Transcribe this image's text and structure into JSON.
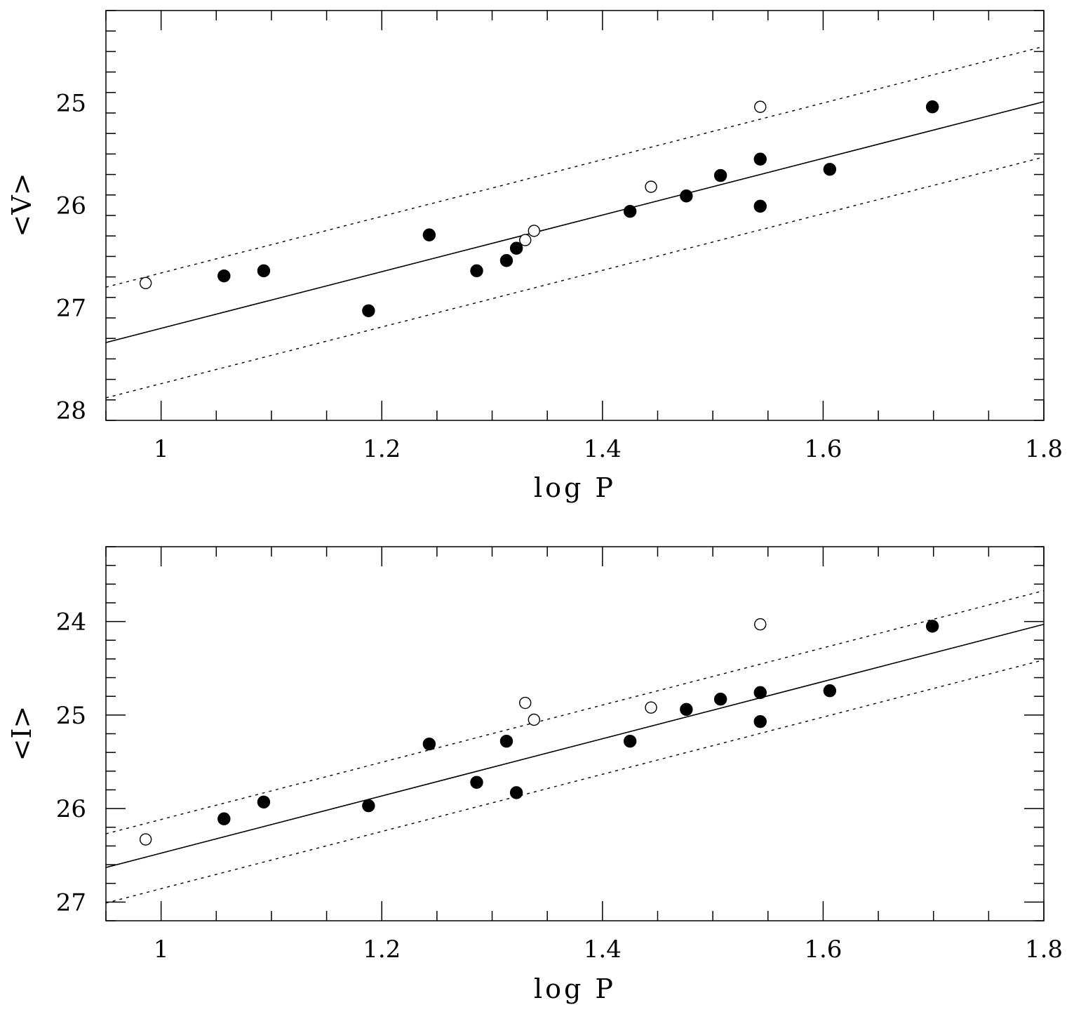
{
  "colors": {
    "ink": "#000000",
    "background": "#ffffff"
  },
  "chart_data": [
    {
      "type": "scatter",
      "xlabel": "log P",
      "ylabel": "<V>",
      "xlim": [
        0.95,
        1.8
      ],
      "ylim": [
        28.1,
        24.1
      ],
      "y_inverted": true,
      "x_ticks": [
        1.0,
        1.2,
        1.4,
        1.6,
        1.8
      ],
      "x_tick_labels": [
        "1",
        "1.2",
        "1.4",
        "1.6",
        "1.8"
      ],
      "x_minor_step": 0.05,
      "y_ticks": [
        25,
        26,
        27,
        28
      ],
      "y_tick_labels": [
        "25",
        "26",
        "27",
        "28"
      ],
      "y_minor_step": 0.2,
      "series": [
        {
          "name": "filled",
          "marker": "filled-circle",
          "points": [
            [
              1.057,
              26.69
            ],
            [
              1.093,
              26.64
            ],
            [
              1.188,
              27.03
            ],
            [
              1.243,
              26.29
            ],
            [
              1.286,
              26.64
            ],
            [
              1.313,
              26.54
            ],
            [
              1.322,
              26.42
            ],
            [
              1.425,
              26.06
            ],
            [
              1.476,
              25.91
            ],
            [
              1.507,
              25.71
            ],
            [
              1.543,
              25.55
            ],
            [
              1.543,
              26.01
            ],
            [
              1.606,
              25.65
            ],
            [
              1.699,
              25.04
            ]
          ]
        },
        {
          "name": "open",
          "marker": "open-circle",
          "points": [
            [
              0.986,
              26.76
            ],
            [
              1.33,
              26.34
            ],
            [
              1.338,
              26.25
            ],
            [
              1.444,
              25.82
            ],
            [
              1.543,
              25.04
            ]
          ]
        }
      ],
      "lines": [
        {
          "name": "fit",
          "style": "solid",
          "x": [
            0.95,
            1.8
          ],
          "y": [
            27.34,
            24.99
          ]
        },
        {
          "name": "upper-bound",
          "style": "dotted",
          "x": [
            0.95,
            1.8
          ],
          "y": [
            26.8,
            24.45
          ]
        },
        {
          "name": "lower-bound",
          "style": "dotted",
          "x": [
            0.95,
            1.8
          ],
          "y": [
            27.88,
            25.53
          ]
        }
      ]
    },
    {
      "type": "scatter",
      "xlabel": "log P",
      "ylabel": "<I>",
      "xlim": [
        0.95,
        1.8
      ],
      "ylim": [
        27.2,
        23.2
      ],
      "y_inverted": true,
      "x_ticks": [
        1.0,
        1.2,
        1.4,
        1.6,
        1.8
      ],
      "x_tick_labels": [
        "1",
        "1.2",
        "1.4",
        "1.6",
        "1.8"
      ],
      "x_minor_step": 0.05,
      "y_ticks": [
        24,
        25,
        26,
        27
      ],
      "y_tick_labels": [
        "24",
        "25",
        "26",
        "27"
      ],
      "y_minor_step": 0.2,
      "series": [
        {
          "name": "filled",
          "marker": "filled-circle",
          "points": [
            [
              1.057,
              26.11
            ],
            [
              1.093,
              25.93
            ],
            [
              1.188,
              25.97
            ],
            [
              1.243,
              25.31
            ],
            [
              1.286,
              25.72
            ],
            [
              1.313,
              25.28
            ],
            [
              1.322,
              25.83
            ],
            [
              1.425,
              25.28
            ],
            [
              1.476,
              24.94
            ],
            [
              1.507,
              24.83
            ],
            [
              1.543,
              24.76
            ],
            [
              1.543,
              25.07
            ],
            [
              1.606,
              24.74
            ],
            [
              1.699,
              24.05
            ]
          ]
        },
        {
          "name": "open",
          "marker": "open-circle",
          "points": [
            [
              0.986,
              26.33
            ],
            [
              1.33,
              24.87
            ],
            [
              1.338,
              25.05
            ],
            [
              1.444,
              24.92
            ],
            [
              1.543,
              24.03
            ]
          ]
        }
      ],
      "lines": [
        {
          "name": "fit",
          "style": "solid",
          "x": [
            0.95,
            1.8
          ],
          "y": [
            26.63,
            24.03
          ]
        },
        {
          "name": "upper-bound",
          "style": "dotted",
          "x": [
            0.95,
            1.8
          ],
          "y": [
            26.27,
            23.67
          ]
        },
        {
          "name": "lower-bound",
          "style": "dotted",
          "x": [
            0.95,
            1.8
          ],
          "y": [
            27.01,
            24.41
          ]
        }
      ]
    }
  ]
}
